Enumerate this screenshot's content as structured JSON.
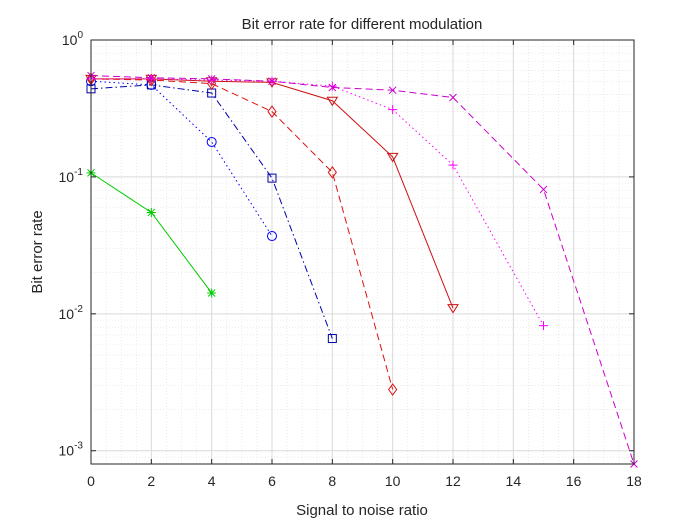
{
  "chart_data": {
    "type": "line",
    "title": "Bit error rate for different modulation",
    "xlabel": "Signal to noise ratio",
    "ylabel": "Bit error rate",
    "xlim": [
      0,
      18
    ],
    "ylim": [
      0.0008,
      1
    ],
    "yscale": "log",
    "grid": true,
    "minor_grid": true,
    "x_ticks": [
      0,
      2,
      4,
      6,
      8,
      10,
      12,
      14,
      16,
      18
    ],
    "y_ticks": [
      {
        "value": 0.001,
        "base": "10",
        "exp": "-3"
      },
      {
        "value": 0.01,
        "base": "10",
        "exp": "-2"
      },
      {
        "value": 0.1,
        "base": "10",
        "exp": "-1"
      },
      {
        "value": 1,
        "base": "10",
        "exp": "0"
      }
    ],
    "series": [
      {
        "name": "green-star",
        "color": "#00cc00",
        "linestyle": "solid",
        "marker": "asterisk",
        "x": [
          0,
          2,
          4
        ],
        "y": [
          0.107,
          0.055,
          0.0142
        ]
      },
      {
        "name": "blue-circle",
        "color": "#0000ff",
        "linestyle": "dotted",
        "marker": "circle",
        "x": [
          0,
          2,
          4,
          6
        ],
        "y": [
          0.5,
          0.47,
          0.18,
          0.037
        ]
      },
      {
        "name": "blue-square",
        "color": "#0000aa",
        "linestyle": "dashdot",
        "marker": "square",
        "x": [
          0,
          2,
          4,
          6,
          8
        ],
        "y": [
          0.44,
          0.47,
          0.41,
          0.098,
          0.0066
        ]
      },
      {
        "name": "red-diamond",
        "color": "#dd1111",
        "linestyle": "dashed",
        "marker": "diamond",
        "x": [
          0,
          2,
          4,
          6,
          8,
          10
        ],
        "y": [
          0.52,
          0.51,
          0.48,
          0.3,
          0.108,
          0.0028
        ]
      },
      {
        "name": "red-triangle",
        "color": "#cc1111",
        "linestyle": "solid",
        "marker": "triangle-down",
        "x": [
          0,
          2,
          4,
          6,
          8,
          10,
          12
        ],
        "y": [
          0.52,
          0.52,
          0.5,
          0.49,
          0.36,
          0.14,
          0.011
        ]
      },
      {
        "name": "magenta-plus",
        "color": "#ff00ff",
        "linestyle": "dotted",
        "marker": "plus",
        "x": [
          0,
          2,
          4,
          6,
          8,
          10,
          12,
          15
        ],
        "y": [
          0.52,
          0.52,
          0.51,
          0.5,
          0.46,
          0.31,
          0.122,
          0.0082
        ]
      },
      {
        "name": "magenta-x",
        "color": "#cc00cc",
        "linestyle": "dashed",
        "marker": "x",
        "x": [
          0,
          2,
          4,
          6,
          8,
          10,
          12,
          15,
          18
        ],
        "y": [
          0.55,
          0.53,
          0.52,
          0.5,
          0.45,
          0.43,
          0.38,
          0.081,
          0.0008
        ]
      }
    ]
  }
}
